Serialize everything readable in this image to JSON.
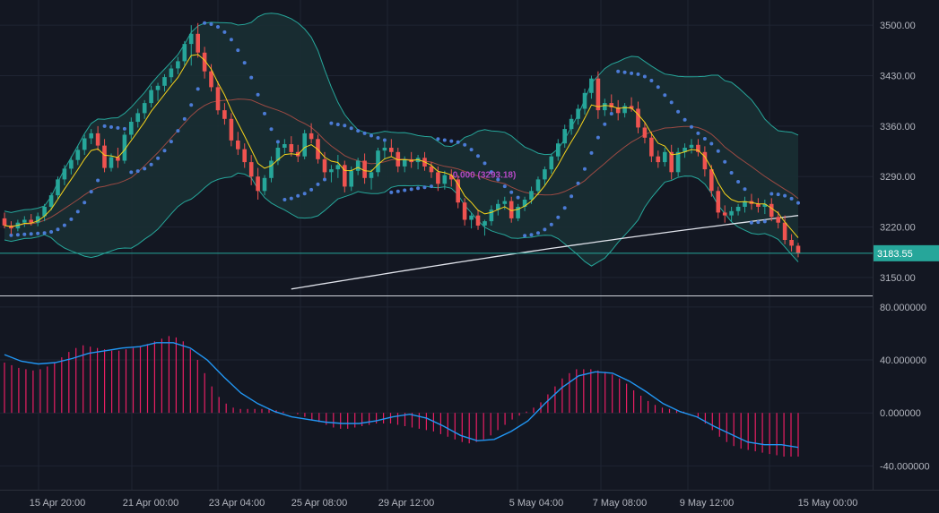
{
  "chart_data": [
    {
      "type": "candlestick",
      "panel": "price",
      "ylim": [
        3125,
        3535
      ],
      "y_ticks": [
        3500,
        3430,
        3360,
        3290,
        3220,
        3150
      ],
      "y_tick_labels": [
        "3500.00",
        "3430.00",
        "3360.00",
        "3290.00",
        "3220.00",
        "3150.00"
      ],
      "grid": true,
      "current_price": 3183.55,
      "current_price_label": "3183.55",
      "fib_annotation": "0.000 (3293.18)",
      "fib_price": 3293.18,
      "candles": [
        [
          3232,
          3240,
          3218,
          3222
        ],
        [
          3222,
          3228,
          3210,
          3218
        ],
        [
          3218,
          3230,
          3214,
          3226
        ],
        [
          3226,
          3235,
          3220,
          3230
        ],
        [
          3230,
          3238,
          3222,
          3226
        ],
        [
          3226,
          3240,
          3221,
          3235
        ],
        [
          3235,
          3252,
          3228,
          3248
        ],
        [
          3248,
          3268,
          3243,
          3264
        ],
        [
          3264,
          3290,
          3259,
          3286
        ],
        [
          3286,
          3306,
          3278,
          3301
        ],
        [
          3301,
          3318,
          3293,
          3313
        ],
        [
          3313,
          3332,
          3306,
          3327
        ],
        [
          3327,
          3348,
          3320,
          3343
        ],
        [
          3343,
          3356,
          3335,
          3350
        ],
        [
          3350,
          3360,
          3326,
          3333
        ],
        [
          3333,
          3342,
          3296,
          3302
        ],
        [
          3302,
          3322,
          3297,
          3317
        ],
        [
          3317,
          3330,
          3302,
          3312
        ],
        [
          3312,
          3352,
          3308,
          3348
        ],
        [
          3348,
          3372,
          3342,
          3366
        ],
        [
          3366,
          3384,
          3358,
          3378
        ],
        [
          3378,
          3396,
          3370,
          3392
        ],
        [
          3392,
          3416,
          3386,
          3410
        ],
        [
          3410,
          3420,
          3395,
          3416
        ],
        [
          3416,
          3432,
          3408,
          3428
        ],
        [
          3428,
          3445,
          3420,
          3440
        ],
        [
          3440,
          3456,
          3432,
          3450
        ],
        [
          3450,
          3478,
          3444,
          3474
        ],
        [
          3474,
          3500,
          3444,
          3488
        ],
        [
          3488,
          3503,
          3455,
          3462
        ],
        [
          3462,
          3470,
          3426,
          3436
        ],
        [
          3436,
          3446,
          3408,
          3414
        ],
        [
          3414,
          3422,
          3376,
          3382
        ],
        [
          3382,
          3392,
          3362,
          3370
        ],
        [
          3370,
          3378,
          3332,
          3340
        ],
        [
          3340,
          3352,
          3320,
          3328
        ],
        [
          3328,
          3336,
          3302,
          3310
        ],
        [
          3310,
          3320,
          3278,
          3290
        ],
        [
          3290,
          3302,
          3258,
          3270
        ],
        [
          3270,
          3292,
          3264,
          3288
        ],
        [
          3288,
          3318,
          3282,
          3312
        ],
        [
          3312,
          3336,
          3306,
          3330
        ],
        [
          3330,
          3342,
          3322,
          3335
        ],
        [
          3335,
          3346,
          3318,
          3324
        ],
        [
          3324,
          3334,
          3310,
          3318
        ],
        [
          3318,
          3355,
          3314,
          3350
        ],
        [
          3350,
          3364,
          3336,
          3342
        ],
        [
          3342,
          3348,
          3308,
          3314
        ],
        [
          3314,
          3324,
          3288,
          3296
        ],
        [
          3296,
          3306,
          3282,
          3300
        ],
        [
          3300,
          3320,
          3288,
          3306
        ],
        [
          3306,
          3312,
          3268,
          3276
        ],
        [
          3276,
          3304,
          3270,
          3298
        ],
        [
          3298,
          3316,
          3292,
          3312
        ],
        [
          3312,
          3322,
          3280,
          3288
        ],
        [
          3288,
          3300,
          3272,
          3296
        ],
        [
          3296,
          3330,
          3290,
          3326
        ],
        [
          3326,
          3338,
          3314,
          3330
        ],
        [
          3330,
          3342,
          3318,
          3324
        ],
        [
          3324,
          3330,
          3296,
          3304
        ],
        [
          3304,
          3318,
          3296,
          3314
        ],
        [
          3314,
          3324,
          3302,
          3310
        ],
        [
          3310,
          3320,
          3300,
          3316
        ],
        [
          3316,
          3324,
          3298,
          3304
        ],
        [
          3304,
          3310,
          3288,
          3296
        ],
        [
          3296,
          3304,
          3270,
          3280
        ],
        [
          3280,
          3298,
          3272,
          3292
        ],
        [
          3292,
          3300,
          3276,
          3286
        ],
        [
          3286,
          3292,
          3246,
          3254
        ],
        [
          3254,
          3260,
          3222,
          3230
        ],
        [
          3230,
          3240,
          3218,
          3236
        ],
        [
          3236,
          3244,
          3216,
          3222
        ],
        [
          3222,
          3230,
          3208,
          3228
        ],
        [
          3228,
          3250,
          3222,
          3244
        ],
        [
          3244,
          3258,
          3236,
          3252
        ],
        [
          3252,
          3262,
          3244,
          3256
        ],
        [
          3256,
          3262,
          3226,
          3232
        ],
        [
          3232,
          3252,
          3228,
          3248
        ],
        [
          3248,
          3262,
          3242,
          3258
        ],
        [
          3258,
          3276,
          3252,
          3270
        ],
        [
          3270,
          3290,
          3264,
          3286
        ],
        [
          3286,
          3304,
          3278,
          3300
        ],
        [
          3300,
          3322,
          3294,
          3318
        ],
        [
          3318,
          3342,
          3312,
          3336
        ],
        [
          3336,
          3362,
          3330,
          3356
        ],
        [
          3356,
          3376,
          3348,
          3370
        ],
        [
          3370,
          3390,
          3362,
          3384
        ],
        [
          3384,
          3412,
          3376,
          3406
        ],
        [
          3406,
          3430,
          3398,
          3426
        ],
        [
          3426,
          3436,
          3370,
          3382
        ],
        [
          3382,
          3398,
          3374,
          3392
        ],
        [
          3392,
          3404,
          3380,
          3386
        ],
        [
          3386,
          3396,
          3368,
          3378
        ],
        [
          3378,
          3392,
          3372,
          3388
        ],
        [
          3388,
          3400,
          3380,
          3384
        ],
        [
          3384,
          3394,
          3350,
          3358
        ],
        [
          3358,
          3366,
          3336,
          3344
        ],
        [
          3344,
          3352,
          3310,
          3318
        ],
        [
          3318,
          3326,
          3302,
          3310
        ],
        [
          3310,
          3330,
          3304,
          3324
        ],
        [
          3324,
          3334,
          3286,
          3296
        ],
        [
          3296,
          3330,
          3290,
          3324
        ],
        [
          3324,
          3336,
          3316,
          3330
        ],
        [
          3330,
          3342,
          3322,
          3334
        ],
        [
          3334,
          3342,
          3318,
          3324
        ],
        [
          3324,
          3332,
          3290,
          3300
        ],
        [
          3300,
          3306,
          3262,
          3270
        ],
        [
          3270,
          3276,
          3232,
          3240
        ],
        [
          3240,
          3250,
          3226,
          3236
        ],
        [
          3236,
          3248,
          3228,
          3242
        ],
        [
          3242,
          3252,
          3236,
          3248
        ],
        [
          3248,
          3262,
          3240,
          3256
        ],
        [
          3256,
          3266,
          3244,
          3252
        ],
        [
          3252,
          3260,
          3240,
          3248
        ],
        [
          3248,
          3258,
          3238,
          3252
        ],
        [
          3252,
          3260,
          3228,
          3234
        ],
        [
          3234,
          3242,
          3218,
          3226
        ],
        [
          3226,
          3236,
          3196,
          3202
        ],
        [
          3202,
          3210,
          3186,
          3194
        ],
        [
          3194,
          3198,
          3178,
          3183.55
        ]
      ]
    },
    {
      "type": "histogram+line",
      "panel": "oscillator",
      "ylim": [
        -58,
        88
      ],
      "y_ticks": [
        80,
        40,
        0,
        -40
      ],
      "y_tick_labels": [
        "80.000000",
        "40.000000",
        "0.000000",
        "-40.000000"
      ],
      "histogram": [
        38,
        36,
        34,
        33,
        32,
        33,
        35,
        38,
        42,
        46,
        49,
        51,
        50,
        49,
        48,
        47,
        47,
        48,
        49,
        50,
        52,
        54,
        56,
        58,
        57,
        54,
        48,
        40,
        30,
        20,
        12,
        7,
        4,
        3,
        3,
        3,
        3,
        3,
        2,
        1,
        0,
        -1,
        -3,
        -5,
        -7,
        -9,
        -11,
        -12,
        -12,
        -11,
        -10,
        -9,
        -8,
        -8,
        -8,
        -9,
        -10,
        -11,
        -12,
        -13,
        -14,
        -16,
        -18,
        -20,
        -22,
        -23,
        -22,
        -20,
        -17,
        -13,
        -9,
        -5,
        -2,
        1,
        4,
        8,
        14,
        20,
        26,
        30,
        33,
        33,
        33,
        32,
        31,
        29,
        26,
        22,
        17,
        13,
        9,
        6,
        4,
        3,
        2,
        1,
        0,
        -3,
        -8,
        -13,
        -18,
        -22,
        -25,
        -27,
        -28,
        -29,
        -30,
        -31,
        -32,
        -33,
        -33,
        -33
      ],
      "signal_line": [
        [
          0,
          44
        ],
        [
          5,
          39
        ],
        [
          10,
          37
        ],
        [
          15,
          38
        ],
        [
          20,
          41
        ],
        [
          25,
          45
        ],
        [
          30,
          47
        ],
        [
          35,
          49
        ],
        [
          40,
          50
        ],
        [
          45,
          53
        ],
        [
          50,
          53
        ],
        [
          55,
          49
        ],
        [
          60,
          40
        ],
        [
          65,
          27
        ],
        [
          70,
          15
        ],
        [
          75,
          7
        ],
        [
          80,
          1
        ],
        [
          85,
          -3
        ],
        [
          90,
          -5
        ],
        [
          95,
          -7
        ],
        [
          100,
          -8
        ],
        [
          105,
          -8
        ],
        [
          110,
          -6
        ],
        [
          115,
          -3
        ],
        [
          120,
          -1
        ],
        [
          125,
          -4
        ],
        [
          130,
          -10
        ],
        [
          135,
          -17
        ],
        [
          140,
          -21
        ],
        [
          145,
          -20
        ],
        [
          150,
          -14
        ],
        [
          155,
          -6
        ],
        [
          160,
          7
        ],
        [
          165,
          19
        ],
        [
          170,
          28
        ],
        [
          175,
          31
        ],
        [
          180,
          30
        ],
        [
          185,
          24
        ],
        [
          190,
          16
        ],
        [
          195,
          7
        ],
        [
          200,
          1
        ],
        [
          205,
          -3
        ],
        [
          210,
          -10
        ],
        [
          215,
          -16
        ],
        [
          220,
          -22
        ],
        [
          225,
          -24
        ],
        [
          230,
          -24
        ],
        [
          235,
          -26
        ]
      ]
    }
  ],
  "x_tick_labels": [
    "15 Apr 20:00",
    "21 Apr 00:00",
    "23 Apr 04:00",
    "25 Apr 08:00",
    "29 Apr 12:00",
    "5 May 04:00",
    "7 May 08:00",
    "9 May 12:00",
    "15 May 00:00"
  ],
  "colors": {
    "background": "#131722",
    "up": "#26a69a",
    "down": "#ef5350",
    "bollinger": "#26a69a",
    "bollinger_fill": "#1a2f33",
    "fast_ma": "#f5d31b",
    "slow_ma": "#9c4a43",
    "long_ma": "#e0e3eb",
    "parabolic_sar": "#4b7bd6",
    "histogram": "#e91e63",
    "signal_line": "#2196f3",
    "price_line": "#26a69a",
    "fib_label": "#b449c4",
    "axis_text": "#b2b5be"
  }
}
